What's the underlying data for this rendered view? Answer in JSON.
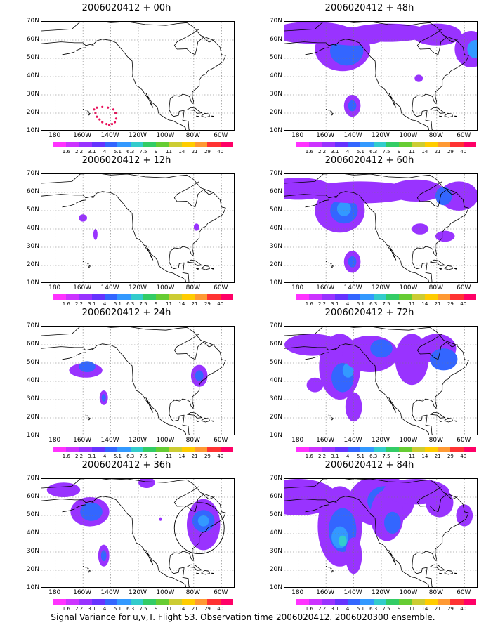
{
  "caption": "Signal Variance for u,v,T. Flight 53. Observation time 2006020412. 2006020300 ensemble.",
  "y_ticks": [
    "70N",
    "60N",
    "50N",
    "40N",
    "30N",
    "20N",
    "10N"
  ],
  "x_ticks": [
    "180",
    "160W",
    "140W",
    "120W",
    "100W",
    "80W",
    "60W"
  ],
  "colorbar": {
    "labels": [
      "1.6",
      "2.2",
      "3.1",
      "4",
      "5.1",
      "6.3",
      "7.5",
      "9",
      "11",
      "14",
      "21",
      "29",
      "40"
    ],
    "colors": [
      "#ff33ff",
      "#cc33ff",
      "#9933ff",
      "#6633ff",
      "#3366ff",
      "#3399ff",
      "#33cccc",
      "#33cc66",
      "#66cc33",
      "#cccc33",
      "#ffcc00",
      "#ff9933",
      "#ff3333",
      "#ff0066"
    ]
  },
  "panels": [
    {
      "title": "2006020412 + 00h"
    },
    {
      "title": "2006020412 + 48h"
    },
    {
      "title": "2006020412 + 12h"
    },
    {
      "title": "2006020412 + 60h"
    },
    {
      "title": "2006020412 + 24h"
    },
    {
      "title": "2006020412 + 72h"
    },
    {
      "title": "2006020412 + 36h"
    },
    {
      "title": "2006020412 + 84h"
    }
  ]
}
